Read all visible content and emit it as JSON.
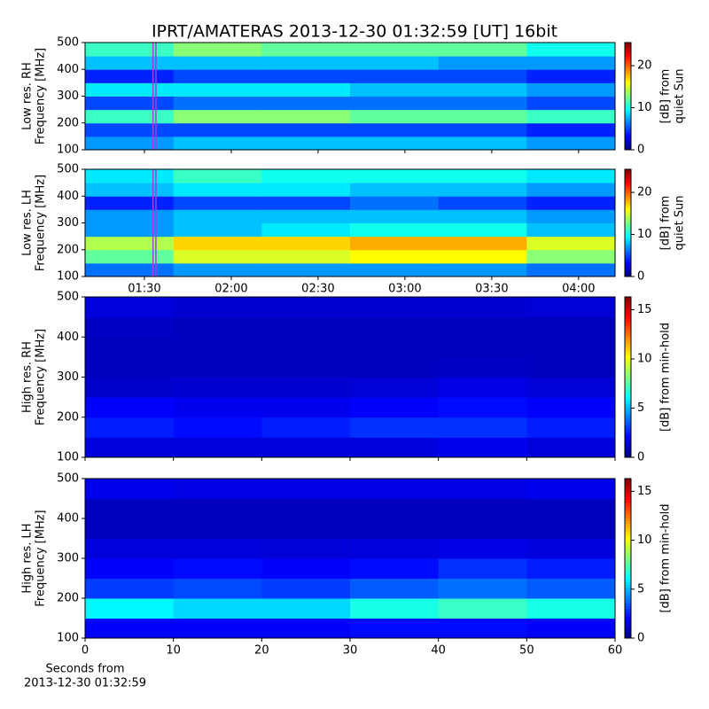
{
  "chart_data": [
    {
      "type": "heatmap",
      "title": "IPRT/AMATERAS 2013-12-30 01:32:59 [UT]   16bit",
      "ylabel": [
        "Low res. RH",
        "Frequency [MHz]"
      ],
      "xlim": [
        69.5,
        252.6
      ],
      "xticks": [
        {
          "value": 90,
          "label": "01:30"
        },
        {
          "value": 120,
          "label": "02:00"
        },
        {
          "value": 150,
          "label": "02:30"
        },
        {
          "value": 180,
          "label": "03:00"
        },
        {
          "value": 210,
          "label": "03:30"
        },
        {
          "value": 240,
          "label": "04:00"
        }
      ],
      "show_xtick_labels": false,
      "ylim": [
        100,
        500
      ],
      "yticks": [
        100,
        200,
        300,
        400,
        500
      ],
      "window": [
        92.98,
        93.98
      ],
      "window_color": "#a040e0",
      "colormap": "jet",
      "colorbar": {
        "label": [
          "[dB] from",
          "quiet Sun"
        ],
        "lim": [
          0,
          25.5
        ],
        "ticks": [
          0,
          10,
          20
        ]
      },
      "z": [
        [
          7,
          8,
          8,
          8,
          8,
          7
        ],
        [
          5,
          5,
          5,
          5,
          5,
          4
        ],
        [
          11,
          13,
          13,
          12,
          12,
          11
        ],
        [
          5,
          6,
          6,
          6,
          6,
          5
        ],
        [
          9,
          9,
          9,
          8,
          8,
          7
        ],
        [
          4,
          5,
          5,
          5,
          5,
          4
        ],
        [
          8,
          8,
          8,
          8,
          7,
          7
        ],
        [
          11,
          13,
          12,
          12,
          12,
          10
        ]
      ]
    },
    {
      "type": "heatmap",
      "ylabel": [
        "Low res. LH",
        "Frequency [MHz]"
      ],
      "xlim": [
        69.5,
        252.6
      ],
      "xticks": [
        {
          "value": 90,
          "label": "01:30"
        },
        {
          "value": 120,
          "label": "02:00"
        },
        {
          "value": 150,
          "label": "02:30"
        },
        {
          "value": 180,
          "label": "03:00"
        },
        {
          "value": 210,
          "label": "03:30"
        },
        {
          "value": 240,
          "label": "04:00"
        }
      ],
      "show_xtick_labels": true,
      "ylim": [
        100,
        500
      ],
      "yticks": [
        100,
        200,
        300,
        400,
        500
      ],
      "window": [
        92.98,
        93.98
      ],
      "window_color": "#a040e0",
      "colormap": "jet",
      "colorbar": {
        "label": [
          "[dB] from",
          "quiet Sun"
        ],
        "lim": [
          0,
          25.5
        ],
        "ticks": [
          0,
          10,
          20
        ]
      },
      "z": [
        [
          6,
          7,
          7,
          7,
          7,
          6
        ],
        [
          12,
          15,
          15,
          16,
          16,
          13
        ],
        [
          14,
          17,
          17,
          18,
          18,
          15
        ],
        [
          7,
          8,
          9,
          10,
          10,
          8
        ],
        [
          7,
          8,
          8,
          8,
          8,
          7
        ],
        [
          4,
          5,
          5,
          6,
          5,
          4
        ],
        [
          8,
          9,
          9,
          8,
          8,
          7
        ],
        [
          9,
          11,
          10,
          10,
          10,
          9
        ]
      ]
    },
    {
      "type": "heatmap",
      "ylabel": [
        "High res. RH",
        "Frequency [MHz]"
      ],
      "xlim": [
        0,
        60
      ],
      "xticks": [
        0,
        10,
        20,
        30,
        40,
        50,
        60
      ],
      "show_xtick_labels": false,
      "ylim": [
        100,
        500
      ],
      "yticks": [
        100,
        200,
        300,
        400,
        500
      ],
      "colormap": "jet",
      "colorbar": {
        "label": [
          "[dB] from min-hold"
        ],
        "lim": [
          0,
          16.3
        ],
        "ticks": [
          0,
          5,
          10,
          15
        ]
      },
      "z": [
        [
          1.5,
          1.5,
          1.5,
          1.5,
          1.8,
          1.5
        ],
        [
          2.5,
          2.2,
          2.5,
          2.8,
          2.8,
          2.5
        ],
        [
          2,
          1.8,
          1.8,
          2,
          2.2,
          2
        ],
        [
          1.2,
          1.3,
          1.3,
          1.4,
          1.6,
          1.4
        ],
        [
          1,
          1,
          1,
          1,
          1.1,
          1
        ],
        [
          1,
          1,
          1,
          1,
          1,
          1
        ],
        [
          1.1,
          1,
          1,
          1,
          1,
          1
        ],
        [
          1.5,
          1.3,
          1.3,
          1.3,
          1.3,
          1.4
        ]
      ]
    },
    {
      "type": "heatmap",
      "ylabel": [
        "High res. LH",
        "Frequency [MHz]"
      ],
      "xlabel": [
        "Seconds from",
        "2013-12-30 01:32:59"
      ],
      "xlim": [
        0,
        60
      ],
      "xticks": [
        0,
        10,
        20,
        30,
        40,
        50,
        60
      ],
      "show_xtick_labels": true,
      "ylim": [
        100,
        500
      ],
      "yticks": [
        100,
        200,
        300,
        400,
        500
      ],
      "colormap": "jet",
      "colorbar": {
        "label": [
          "[dB] from min-hold"
        ],
        "lim": [
          0,
          16.3
        ],
        "ticks": [
          0,
          5,
          10,
          15
        ]
      },
      "z": [
        [
          2,
          2,
          2,
          2.2,
          2.2,
          2
        ],
        [
          6,
          5.5,
          5.5,
          6.5,
          7,
          6.5
        ],
        [
          3,
          3.2,
          3,
          3.5,
          3.8,
          3.5
        ],
        [
          2,
          2.2,
          2,
          2.2,
          2.8,
          2.5
        ],
        [
          1.5,
          1.5,
          1.4,
          1.5,
          1.6,
          1.5
        ],
        [
          1,
          1,
          1,
          1,
          1,
          1
        ],
        [
          1,
          1,
          1,
          1,
          1,
          1
        ],
        [
          1.8,
          1.6,
          1.6,
          1.6,
          1.6,
          1.8
        ]
      ]
    }
  ]
}
